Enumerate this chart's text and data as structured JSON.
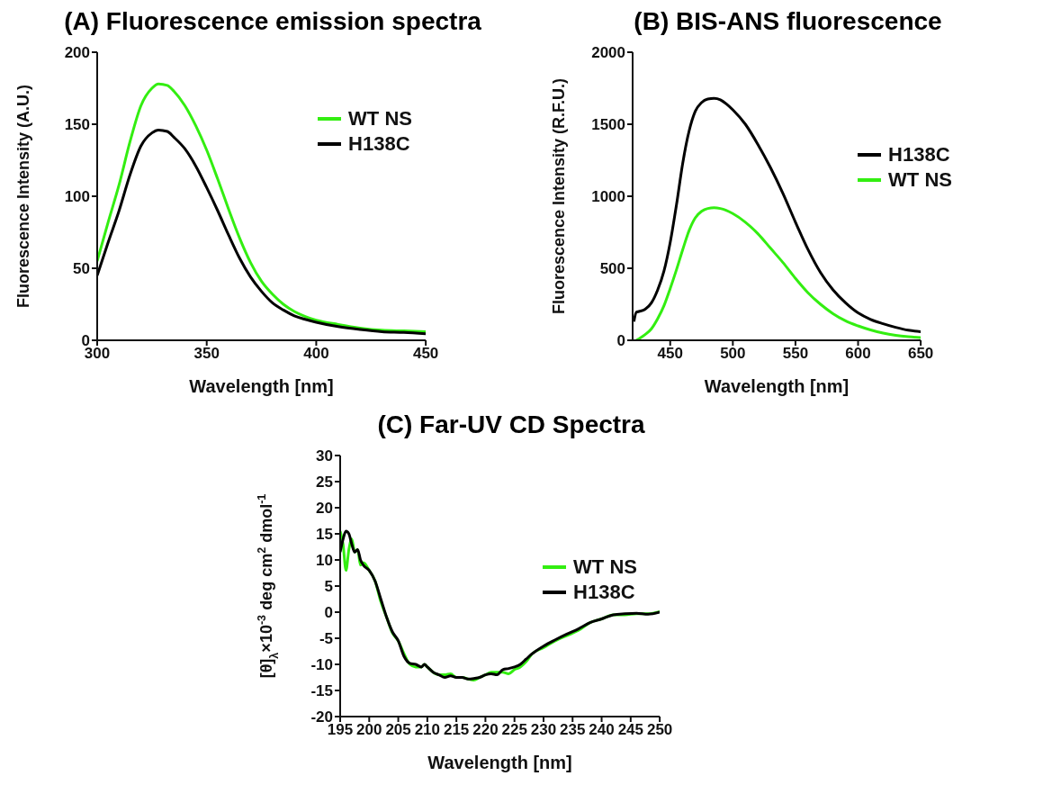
{
  "chart_data": [
    {
      "type": "line",
      "title": "(A) Fluorescence emission spectra",
      "xlabel": "Wavelength [nm]",
      "ylabel": "Fluorescence Intensity (A.U.)",
      "xlim": [
        300,
        450
      ],
      "xticks": [
        300,
        350,
        400,
        450
      ],
      "ylim": [
        0,
        200
      ],
      "yticks": [
        0,
        50,
        100,
        150,
        200
      ],
      "grid": false,
      "legend": "top right",
      "marker": "none",
      "line_style": "solid",
      "series": [
        {
          "name": "WT NS",
          "color": "#33ee11",
          "x": [
            300,
            305,
            310,
            315,
            320,
            325,
            328,
            332,
            335,
            340,
            345,
            350,
            355,
            360,
            365,
            370,
            375,
            380,
            385,
            390,
            395,
            400,
            410,
            420,
            430,
            440,
            450
          ],
          "values": [
            55,
            82,
            108,
            138,
            163,
            175,
            178,
            177,
            173,
            163,
            149,
            132,
            112,
            91,
            71,
            54,
            41,
            32,
            25,
            20,
            16.5,
            14,
            11,
            8.5,
            7,
            6.5,
            6
          ]
        },
        {
          "name": "H138C",
          "color": "#000000",
          "x": [
            300,
            305,
            310,
            315,
            320,
            325,
            328,
            332,
            335,
            340,
            345,
            350,
            355,
            360,
            365,
            370,
            375,
            380,
            385,
            390,
            395,
            400,
            410,
            420,
            430,
            440,
            450
          ],
          "values": [
            45,
            68,
            90,
            115,
            135,
            144,
            146,
            145,
            141,
            133,
            121,
            106,
            90,
            73,
            57,
            44,
            34,
            26,
            21,
            17,
            14.5,
            12.5,
            9.5,
            7.5,
            6,
            5.5,
            4.5
          ]
        }
      ]
    },
    {
      "type": "line",
      "title": "(B)  BIS-ANS fluorescence",
      "xlabel": "Wavelength [nm]",
      "ylabel": "Fluorescence Intensity (R.F.U.)",
      "xlim": [
        420,
        650
      ],
      "xticks": [
        450,
        500,
        550,
        600,
        650
      ],
      "ylim": [
        0,
        2000
      ],
      "yticks": [
        0,
        500,
        1000,
        1500,
        2000
      ],
      "grid": false,
      "legend": "top right",
      "marker": "none",
      "line_style": "solid",
      "series": [
        {
          "name": "H138C",
          "color": "#000000",
          "x": [
            421,
            423,
            425,
            430,
            435,
            440,
            445,
            450,
            455,
            460,
            465,
            470,
            475,
            480,
            485,
            490,
            495,
            500,
            510,
            520,
            530,
            540,
            550,
            560,
            570,
            580,
            590,
            600,
            610,
            620,
            630,
            640,
            650
          ],
          "values": [
            130,
            195,
            200,
            215,
            260,
            350,
            480,
            680,
            940,
            1230,
            1450,
            1590,
            1650,
            1675,
            1680,
            1670,
            1640,
            1600,
            1500,
            1360,
            1200,
            1020,
            820,
            630,
            470,
            350,
            260,
            190,
            145,
            115,
            90,
            70,
            60
          ]
        },
        {
          "name": "WT NS",
          "color": "#33ee11",
          "x": [
            423,
            430,
            435,
            440,
            445,
            450,
            455,
            460,
            465,
            470,
            475,
            480,
            485,
            490,
            500,
            510,
            520,
            530,
            540,
            550,
            560,
            570,
            580,
            590,
            600,
            610,
            620,
            630,
            640,
            650
          ],
          "values": [
            0,
            40,
            80,
            150,
            240,
            360,
            490,
            630,
            760,
            850,
            895,
            915,
            920,
            915,
            880,
            820,
            740,
            640,
            540,
            430,
            330,
            250,
            185,
            135,
            100,
            72,
            50,
            35,
            25,
            18
          ]
        }
      ]
    },
    {
      "type": "line",
      "title": "(C)  Far-UV CD Spectra",
      "xlabel": "Wavelength [nm]",
      "ylabel": "[θ]$_{λ}$×10$^{-3}$ deg cm$^{2}$ dmol$^{-1}$",
      "xlim": [
        195,
        250
      ],
      "xticks": [
        195,
        200,
        205,
        210,
        215,
        220,
        225,
        230,
        235,
        240,
        245,
        250
      ],
      "ylim": [
        -20,
        30
      ],
      "yticks": [
        -20,
        -15,
        -10,
        -5,
        0,
        5,
        10,
        15,
        20,
        25,
        30
      ],
      "grid": false,
      "legend": "top right",
      "marker": "none",
      "line_style": "solid",
      "series": [
        {
          "name": "WT NS",
          "color": "#33ee11",
          "x": [
            195,
            195.5,
            196,
            196.5,
            197,
            197.5,
            198,
            198.5,
            199,
            200,
            201,
            202,
            203,
            204,
            205,
            206,
            207,
            208,
            209,
            209.5,
            210,
            211,
            212,
            213,
            214,
            215,
            216,
            217,
            218,
            219,
            220,
            221,
            222,
            223,
            224,
            225,
            226,
            227,
            228,
            230,
            232,
            234,
            236,
            238,
            240,
            242,
            244,
            246,
            248,
            250
          ],
          "values": [
            15.5,
            13,
            8,
            12,
            14,
            11.5,
            12,
            9,
            9.5,
            8,
            6,
            2,
            -1,
            -4,
            -5.5,
            -8,
            -10,
            -10.5,
            -10.5,
            -10,
            -10.5,
            -11.5,
            -12,
            -12,
            -11.8,
            -12.5,
            -12.5,
            -12.8,
            -13,
            -12.5,
            -12,
            -11.5,
            -11.5,
            -11.5,
            -11.8,
            -11,
            -10.5,
            -9.5,
            -8,
            -6.8,
            -5.5,
            -4.5,
            -3.5,
            -2,
            -1.3,
            -0.5,
            -0.5,
            -0.3,
            -0.3,
            0.1
          ]
        },
        {
          "name": "H138C",
          "color": "#000000",
          "x": [
            195,
            195.5,
            196,
            196.5,
            197,
            197.5,
            198,
            198.5,
            199,
            200,
            201,
            202,
            203,
            204,
            205,
            206,
            207,
            208,
            209,
            209.5,
            210,
            211,
            212,
            213,
            214,
            215,
            216,
            217,
            218,
            219,
            220,
            221,
            222,
            223,
            224,
            225,
            226,
            227,
            228,
            230,
            232,
            234,
            236,
            238,
            240,
            242,
            244,
            246,
            248,
            250
          ],
          "values": [
            11.5,
            14,
            15.5,
            15,
            13,
            11.5,
            12,
            10,
            9,
            8,
            6,
            2.5,
            -1,
            -3.8,
            -5.5,
            -8.5,
            -9.8,
            -10,
            -10.5,
            -10,
            -10.5,
            -11.5,
            -12,
            -12.5,
            -12.2,
            -12.5,
            -12.5,
            -12.8,
            -12.7,
            -12.5,
            -12,
            -11.8,
            -12,
            -11,
            -10.8,
            -10.5,
            -10,
            -9,
            -8,
            -6.5,
            -5.3,
            -4.2,
            -3.2,
            -2,
            -1.3,
            -0.5,
            -0.3,
            -0.2,
            -0.4,
            0
          ]
        }
      ]
    }
  ]
}
